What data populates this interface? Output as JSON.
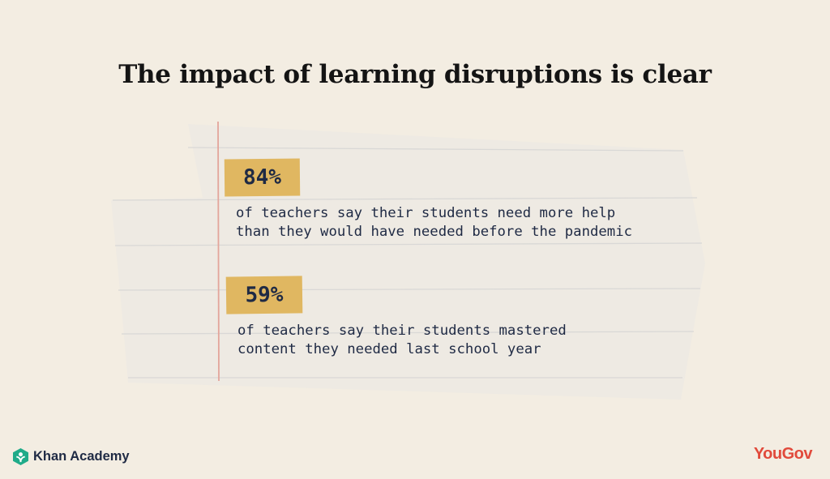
{
  "title": "The impact of learning disruptions is clear",
  "stats": [
    {
      "value": "84%",
      "lines": [
        "of teachers say their students need more help",
        "than they would have needed before the pandemic"
      ]
    },
    {
      "value": "59%",
      "lines": [
        "of teachers say their students mastered",
        "content they needed last school year"
      ]
    }
  ],
  "logos": {
    "left": "Khan Academy",
    "right": "YouGov"
  },
  "colors": {
    "background": "#f3ede2",
    "paper": "#eeeae3",
    "badge": "#e0b761",
    "text": "#1f2a44",
    "margin_line": "#e3a59b",
    "khan_green": "#1fab89",
    "yougov_red": "#e14a3b"
  }
}
